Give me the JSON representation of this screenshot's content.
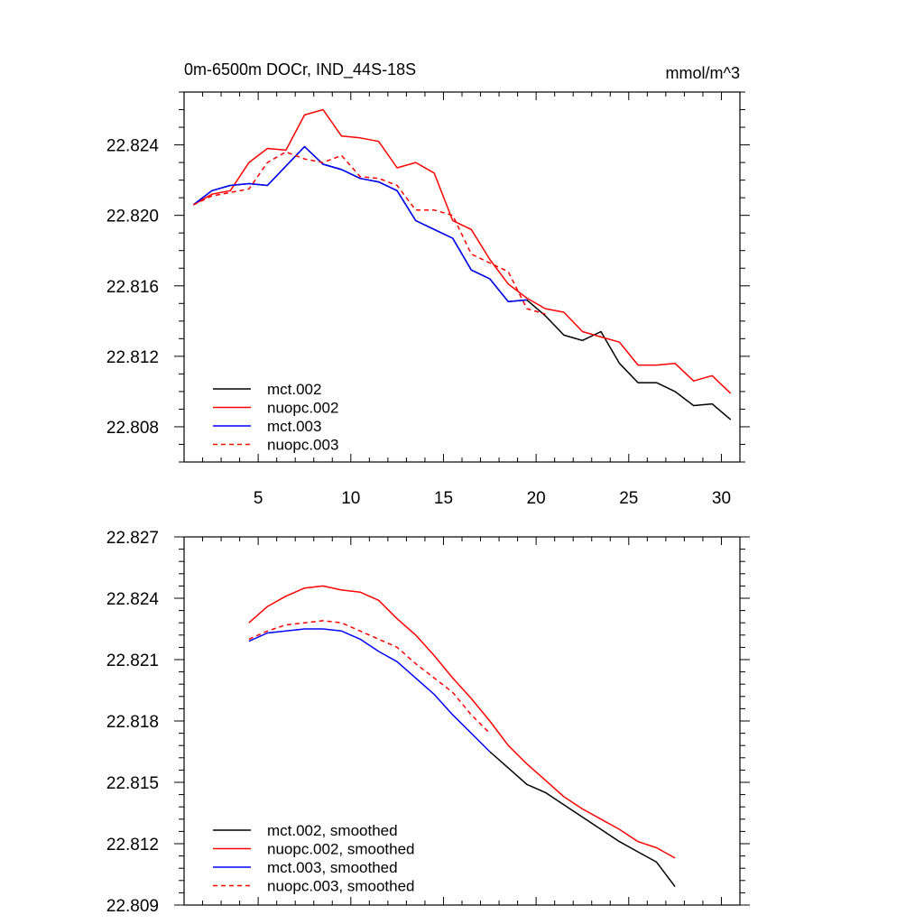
{
  "chart_data": [
    {
      "type": "line",
      "title": "0m-6500m DOCr, IND_44S-18S",
      "units": "mmol/m^3",
      "xlim": [
        1,
        31
      ],
      "ylim": [
        22.806,
        22.827
      ],
      "xticks": [
        5,
        10,
        15,
        20,
        25,
        30
      ],
      "xtick_labels": [
        "5",
        "10",
        "15",
        "20",
        "25",
        "30"
      ],
      "yticks": [
        22.808,
        22.812,
        22.816,
        22.82,
        22.824
      ],
      "ytick_labels": [
        "22.808",
        "22.812",
        "22.816",
        "22.820",
        "22.824"
      ],
      "legend_position": "bottom-left",
      "series": [
        {
          "name": "mct.002",
          "color": "#000000",
          "dash": "solid",
          "x": [
            1.5,
            2.5,
            3.5,
            4.5,
            5.5,
            6.5,
            7.5,
            8.5,
            9.5,
            10.5,
            11.5,
            12.5,
            13.5,
            14.5,
            15.5,
            16.5,
            17.5,
            18.5,
            19.5,
            20.5,
            21.5,
            22.5,
            23.5,
            24.5,
            25.5,
            26.5,
            27.5,
            28.5,
            29.5,
            30.5
          ],
          "y": [
            22.8206,
            22.8214,
            22.8217,
            22.8218,
            22.8217,
            22.8228,
            22.8239,
            22.8229,
            22.8226,
            22.8221,
            22.8219,
            22.8214,
            22.8197,
            22.8192,
            22.8187,
            22.8169,
            22.8164,
            22.8151,
            22.8152,
            22.8143,
            22.8132,
            22.8129,
            22.8134,
            22.8116,
            22.8105,
            22.8105,
            22.81,
            22.8092,
            22.8093,
            22.8084
          ]
        },
        {
          "name": "nuopc.002",
          "color": "#ff0000",
          "dash": "solid",
          "x": [
            1.5,
            2.5,
            3.5,
            4.5,
            5.5,
            6.5,
            7.5,
            8.5,
            9.5,
            10.5,
            11.5,
            12.5,
            13.5,
            14.5,
            15.5,
            16.5,
            17.5,
            18.5,
            19.5,
            20.5,
            21.5,
            22.5,
            23.5,
            24.5,
            25.5,
            26.5,
            27.5,
            28.5,
            29.5,
            30.5
          ],
          "y": [
            22.8206,
            22.8212,
            22.8214,
            22.823,
            22.8238,
            22.8237,
            22.8257,
            22.826,
            22.8245,
            22.8244,
            22.8242,
            22.8227,
            22.823,
            22.8224,
            22.8197,
            22.8192,
            22.8175,
            22.8161,
            22.8153,
            22.8147,
            22.8145,
            22.8134,
            22.8131,
            22.8128,
            22.8115,
            22.8115,
            22.8116,
            22.8106,
            22.8109,
            22.8099
          ]
        },
        {
          "name": "mct.003",
          "color": "#0000ff",
          "dash": "solid",
          "x": [
            1.5,
            2.5,
            3.5,
            4.5,
            5.5,
            6.5,
            7.5,
            8.5,
            9.5,
            10.5,
            11.5,
            12.5,
            13.5,
            14.5,
            15.5,
            16.5,
            17.5,
            18.5,
            19.5
          ],
          "y": [
            22.8206,
            22.8214,
            22.8217,
            22.8218,
            22.8217,
            22.8228,
            22.8239,
            22.8229,
            22.8226,
            22.8221,
            22.8219,
            22.8214,
            22.8197,
            22.8192,
            22.8187,
            22.8169,
            22.8164,
            22.8151,
            22.8152
          ]
        },
        {
          "name": "nuopc.003",
          "color": "#ff0000",
          "dash": "dashed",
          "x": [
            1.5,
            2.5,
            3.5,
            4.5,
            5.5,
            6.5,
            7.5,
            8.5,
            9.5,
            10.5,
            11.5,
            12.5,
            13.5,
            14.5,
            15.5,
            16.5,
            17.5,
            18.5,
            19.5,
            20.5
          ],
          "y": [
            22.8206,
            22.8211,
            22.8213,
            22.8215,
            22.823,
            22.8236,
            22.8232,
            22.823,
            22.8234,
            22.8222,
            22.8221,
            22.8217,
            22.8203,
            22.8203,
            22.82,
            22.8178,
            22.8173,
            22.8168,
            22.8147,
            22.8144
          ]
        }
      ]
    },
    {
      "type": "line",
      "title": "",
      "xlim": [
        1,
        31
      ],
      "ylim": [
        22.809,
        22.827
      ],
      "xticks": [
        5,
        10,
        15,
        20,
        25,
        30
      ],
      "yticks": [
        22.809,
        22.812,
        22.815,
        22.818,
        22.821,
        22.824,
        22.827
      ],
      "ytick_labels": [
        "22.809",
        "22.812",
        "22.815",
        "22.818",
        "22.821",
        "22.824",
        "22.827"
      ],
      "legend_position": "bottom-left",
      "series": [
        {
          "name": "mct.002, smoothed",
          "color": "#000000",
          "dash": "solid",
          "x": [
            17.5,
            18.5,
            19.5,
            20.5,
            21.5,
            22.5,
            23.5,
            24.5,
            25.5,
            26.5,
            27.5
          ],
          "y": [
            22.8165,
            22.8157,
            22.8149,
            22.8145,
            22.8139,
            22.8133,
            22.8127,
            22.8121,
            22.8116,
            22.8111,
            22.8099
          ]
        },
        {
          "name": "nuopc.002, smoothed",
          "color": "#ff0000",
          "dash": "solid",
          "x": [
            4.5,
            5.5,
            6.5,
            7.5,
            8.5,
            9.5,
            10.5,
            11.5,
            12.5,
            13.5,
            14.5,
            15.5,
            16.5,
            17.5,
            18.5,
            19.5,
            20.5,
            21.5,
            22.5,
            23.5,
            24.5,
            25.5,
            26.5,
            27.5
          ],
          "y": [
            22.8228,
            22.8236,
            22.8241,
            22.8245,
            22.8246,
            22.8244,
            22.8243,
            22.8239,
            22.823,
            22.8222,
            22.8212,
            22.8201,
            22.8191,
            22.818,
            22.8168,
            22.8159,
            22.8151,
            22.8143,
            22.8137,
            22.8132,
            22.8127,
            22.8121,
            22.8118,
            22.8113
          ]
        },
        {
          "name": "mct.003, smoothed",
          "color": "#0000ff",
          "dash": "solid",
          "x": [
            4.5,
            5.5,
            6.5,
            7.5,
            8.5,
            9.5,
            10.5,
            11.5,
            12.5,
            13.5,
            14.5,
            15.5,
            16.5,
            17.5
          ],
          "y": [
            22.8219,
            22.8223,
            22.8224,
            22.8225,
            22.8225,
            22.8224,
            22.822,
            22.8214,
            22.8209,
            22.8201,
            22.8193,
            22.8183,
            22.8174,
            22.8165
          ]
        },
        {
          "name": "nuopc.003, smoothed",
          "color": "#ff0000",
          "dash": "dashed",
          "x": [
            4.5,
            5.5,
            6.5,
            7.5,
            8.5,
            9.5,
            10.5,
            11.5,
            12.5,
            13.5,
            14.5,
            15.5,
            16.5,
            17.5
          ],
          "y": [
            22.822,
            22.8224,
            22.8227,
            22.8228,
            22.8229,
            22.8228,
            22.8224,
            22.822,
            22.8216,
            22.8208,
            22.8201,
            22.8194,
            22.8183,
            22.8174
          ]
        }
      ]
    }
  ]
}
